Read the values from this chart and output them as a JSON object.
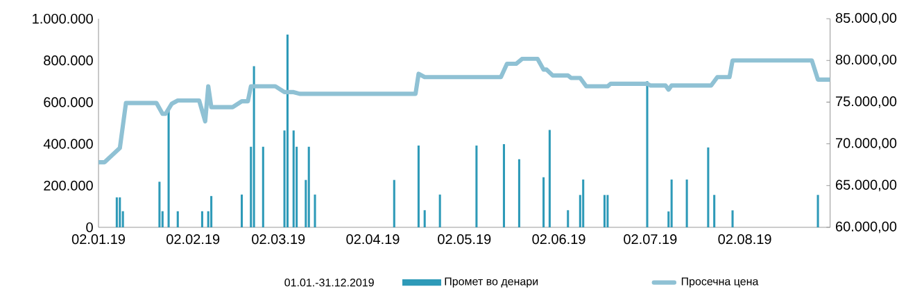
{
  "chart_data": {
    "type": "bar",
    "xlim": [
      "2019-01-02",
      "2019-08-30"
    ],
    "xticks": [
      {
        "value": "2019-01-02",
        "label": "02.01.19"
      },
      {
        "value": "2019-02-02",
        "label": "02.02.19"
      },
      {
        "value": "2019-03-02",
        "label": "02.03.19"
      },
      {
        "value": "2019-04-02",
        "label": "02.04.19"
      },
      {
        "value": "2019-05-02",
        "label": "02.05.19"
      },
      {
        "value": "2019-06-02",
        "label": "02.06.19"
      },
      {
        "value": "2019-07-02",
        "label": "02.07.19"
      },
      {
        "value": "2019-08-02",
        "label": "02.08.19"
      }
    ],
    "ylim": [
      0,
      1000000
    ],
    "yticks": [
      0,
      {
        "value": 200000,
        "label": "200.000"
      },
      {
        "value": 400000,
        "label": "400.000"
      },
      {
        "value": 600000,
        "label": "600.000"
      },
      {
        "value": 800000,
        "label": "800.000"
      },
      {
        "value": 1000000,
        "label": "1.000.000"
      }
    ],
    "y2lim": [
      60000,
      85000
    ],
    "y2ticks": [
      {
        "value": 60000,
        "label": "60.000,00"
      },
      {
        "value": 65000,
        "label": "65.000,00"
      },
      {
        "value": 70000,
        "label": "70.000,00"
      },
      {
        "value": 75000,
        "label": "75.000,00"
      },
      {
        "value": 80000,
        "label": "80.000,00"
      },
      {
        "value": 85000,
        "label": "85.000,00"
      }
    ],
    "legend": "bottom",
    "annotations": [
      "01.01.-31.12.2019"
    ],
    "series": [
      {
        "name": "Промет во денари",
        "color": "#2e9ab8",
        "x": [
          "2019-01-08",
          "2019-01-09",
          "2019-01-10",
          "2019-01-22",
          "2019-01-23",
          "2019-01-25",
          "2019-01-28",
          "2019-02-05",
          "2019-02-07",
          "2019-02-08",
          "2019-02-18",
          "2019-02-21",
          "2019-02-22",
          "2019-02-25",
          "2019-03-04",
          "2019-03-05",
          "2019-03-07",
          "2019-03-08",
          "2019-03-11",
          "2019-03-12",
          "2019-03-14",
          "2019-04-09",
          "2019-04-17",
          "2019-04-19",
          "2019-04-24",
          "2019-05-06",
          "2019-05-15",
          "2019-05-20",
          "2019-05-28",
          "2019-05-30",
          "2019-06-05",
          "2019-06-09",
          "2019-06-10",
          "2019-06-17",
          "2019-06-18",
          "2019-07-01",
          "2019-07-08",
          "2019-07-09",
          "2019-07-14",
          "2019-07-21",
          "2019-07-23",
          "2019-07-29",
          "2019-08-26"
        ],
        "values": [
          144000,
          144000,
          77000,
          218000,
          77000,
          558000,
          77000,
          77000,
          77000,
          150000,
          157000,
          386000,
          772000,
          386000,
          464000,
          924000,
          464000,
          386000,
          227000,
          386000,
          157000,
          227000,
          392000,
          82000,
          157000,
          392000,
          399000,
          326000,
          240000,
          467000,
          82000,
          155000,
          229000,
          155000,
          155000,
          700000,
          76000,
          229000,
          229000,
          383000,
          155000,
          81000,
          155000
        ]
      },
      {
        "name": "Просечна цена",
        "type": "line",
        "axis": "y2",
        "color": "#8fc1d4",
        "x": [
          "2019-01-02",
          "2019-01-04",
          "2019-01-09",
          "2019-01-11",
          "2019-01-21",
          "2019-01-23",
          "2019-01-24",
          "2019-01-26",
          "2019-01-28",
          "2019-02-04",
          "2019-02-06",
          "2019-02-07",
          "2019-02-08",
          "2019-02-15",
          "2019-02-18",
          "2019-02-20",
          "2019-02-21",
          "2019-03-01",
          "2019-03-04",
          "2019-03-07",
          "2019-03-09",
          "2019-04-16",
          "2019-04-17",
          "2019-04-19",
          "2019-05-14",
          "2019-05-16",
          "2019-05-19",
          "2019-05-21",
          "2019-05-26",
          "2019-05-28",
          "2019-05-29",
          "2019-05-31",
          "2019-06-05",
          "2019-06-06",
          "2019-06-09",
          "2019-06-11",
          "2019-06-18",
          "2019-06-19",
          "2019-07-01",
          "2019-07-02",
          "2019-07-07",
          "2019-07-08",
          "2019-07-09",
          "2019-07-22",
          "2019-07-24",
          "2019-07-28",
          "2019-07-29",
          "2019-08-24",
          "2019-08-26",
          "2019-08-30"
        ],
        "values": [
          67800,
          67800,
          69500,
          74900,
          74900,
          73600,
          73600,
          74800,
          75200,
          75200,
          72700,
          76900,
          74400,
          74400,
          75100,
          75100,
          76900,
          76900,
          76200,
          76200,
          76000,
          76000,
          78400,
          78000,
          78000,
          79600,
          79600,
          80200,
          80200,
          78900,
          78900,
          78200,
          78200,
          77900,
          77900,
          76900,
          76900,
          77200,
          77200,
          77000,
          77000,
          76500,
          77000,
          77000,
          78000,
          78000,
          80000,
          80000,
          77700,
          77700
        ]
      }
    ]
  }
}
